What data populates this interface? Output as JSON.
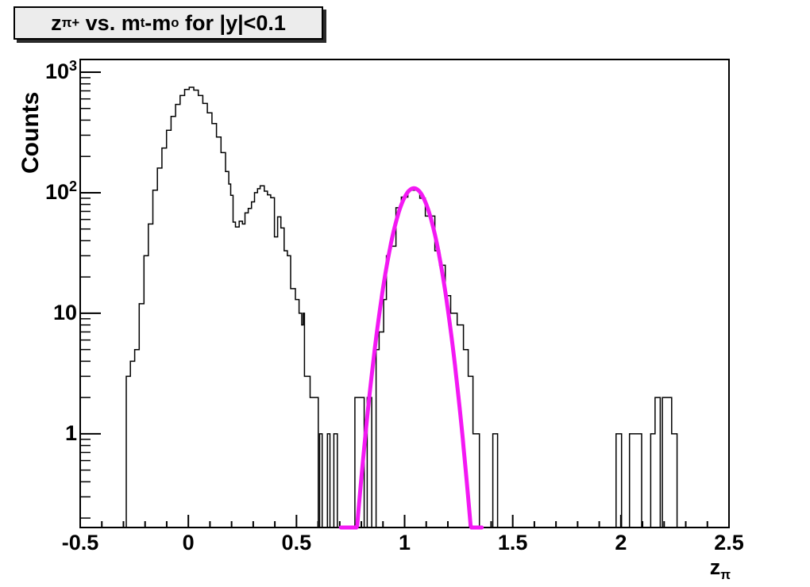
{
  "window": {
    "background": "#ffffff",
    "plot_background": "#ffffff"
  },
  "title": {
    "segments": [
      {
        "text": "z"
      },
      {
        "text": "π+",
        "style": "sub"
      },
      {
        "text": " vs. m"
      },
      {
        "text": "t",
        "style": "sub"
      },
      {
        "text": "-m"
      },
      {
        "text": "o",
        "style": "sub"
      },
      {
        "text": " for |y|<0.1"
      }
    ],
    "box_fill": "#ececec",
    "box_border": "#000000"
  },
  "axes": {
    "x": {
      "title_main": "z",
      "title_sub": "π"
    },
    "y": {
      "title": "Counts"
    }
  },
  "chart_data": {
    "type": "bar",
    "subtype": "step-histogram-log-y",
    "title": "z_pi+ vs. m_t-m_o for |y|<0.1",
    "xlabel": "z_pi",
    "ylabel": "Counts",
    "xlim": [
      -0.5,
      2.5
    ],
    "ylim": [
      0.167,
      1274
    ],
    "ylog": true,
    "grid": false,
    "x_major_ticks": [
      {
        "value": -0.5,
        "label": "-0.5"
      },
      {
        "value": 0,
        "label": "0"
      },
      {
        "value": 0.5,
        "label": "0.5"
      },
      {
        "value": 1,
        "label": "1"
      },
      {
        "value": 1.5,
        "label": "1.5"
      },
      {
        "value": 2,
        "label": "2"
      },
      {
        "value": 2.5,
        "label": "2.5"
      }
    ],
    "x_minor_step": 0.1,
    "y_major_ticks": [
      {
        "value": 1000,
        "base": "10",
        "exp": "3"
      },
      {
        "value": 100,
        "base": "10",
        "exp": "2"
      },
      {
        "value": 10,
        "base": "10",
        "exp": ""
      },
      {
        "value": 1,
        "base": "1",
        "exp": ""
      }
    ],
    "histogram_color": "#000000",
    "steps_note": "each entry is [x_left_edge, counts]; height holds until next entry; 0 = baseline",
    "steps": [
      [
        -0.287,
        3
      ],
      [
        -0.268,
        4
      ],
      [
        -0.248,
        5
      ],
      [
        -0.227,
        12
      ],
      [
        -0.205,
        30
      ],
      [
        -0.185,
        55
      ],
      [
        -0.164,
        105
      ],
      [
        -0.143,
        160
      ],
      [
        -0.122,
        235
      ],
      [
        -0.101,
        330
      ],
      [
        -0.08,
        430
      ],
      [
        -0.059,
        540
      ],
      [
        -0.038,
        640
      ],
      [
        -0.017,
        720
      ],
      [
        0.004,
        750
      ],
      [
        0.025,
        710
      ],
      [
        0.046,
        640
      ],
      [
        0.067,
        550
      ],
      [
        0.088,
        460
      ],
      [
        0.109,
        375
      ],
      [
        0.13,
        290
      ],
      [
        0.151,
        215
      ],
      [
        0.172,
        150
      ],
      [
        0.187,
        118
      ],
      [
        0.196,
        95
      ],
      [
        0.207,
        57
      ],
      [
        0.218,
        52
      ],
      [
        0.235,
        58
      ],
      [
        0.25,
        55
      ],
      [
        0.262,
        68
      ],
      [
        0.277,
        74
      ],
      [
        0.292,
        84
      ],
      [
        0.306,
        100
      ],
      [
        0.32,
        108
      ],
      [
        0.332,
        114
      ],
      [
        0.351,
        103
      ],
      [
        0.366,
        96
      ],
      [
        0.381,
        91
      ],
      [
        0.398,
        43
      ],
      [
        0.413,
        63
      ],
      [
        0.428,
        51
      ],
      [
        0.443,
        33
      ],
      [
        0.458,
        30
      ],
      [
        0.473,
        16
      ],
      [
        0.495,
        13
      ],
      [
        0.512,
        10
      ],
      [
        0.524,
        8
      ],
      [
        0.531,
        10
      ],
      [
        0.537,
        3
      ],
      [
        0.563,
        2
      ],
      [
        0.601,
        0
      ],
      [
        0.607,
        1
      ],
      [
        0.619,
        0
      ],
      [
        0.643,
        1
      ],
      [
        0.655,
        0
      ],
      [
        0.673,
        1
      ],
      [
        0.689,
        0
      ],
      [
        0.77,
        2
      ],
      [
        0.813,
        0
      ],
      [
        0.827,
        2
      ],
      [
        0.848,
        0
      ],
      [
        0.868,
        5
      ],
      [
        0.882,
        7
      ],
      [
        0.903,
        13
      ],
      [
        0.916,
        30
      ],
      [
        0.931,
        36
      ],
      [
        0.96,
        75
      ],
      [
        0.985,
        92
      ],
      [
        1.015,
        105
      ],
      [
        1.07,
        90
      ],
      [
        1.096,
        64
      ],
      [
        1.14,
        33
      ],
      [
        1.162,
        25
      ],
      [
        1.188,
        14
      ],
      [
        1.213,
        10
      ],
      [
        1.243,
        8
      ],
      [
        1.272,
        5
      ],
      [
        1.294,
        3
      ],
      [
        1.316,
        1
      ],
      [
        1.346,
        0
      ],
      [
        1.408,
        1
      ],
      [
        1.43,
        0
      ],
      [
        1.978,
        1
      ],
      [
        2.003,
        0
      ],
      [
        2.04,
        1
      ],
      [
        2.096,
        0
      ],
      [
        2.138,
        1
      ],
      [
        2.158,
        2
      ],
      [
        2.182,
        0
      ],
      [
        2.192,
        2
      ],
      [
        2.235,
        1
      ],
      [
        2.26,
        0
      ]
    ],
    "fit": {
      "type": "gaussian",
      "amplitude": 109,
      "mean": 1.043,
      "sigma": 0.073,
      "range": [
        0.705,
        1.357
      ],
      "color": "#f318f3"
    }
  }
}
